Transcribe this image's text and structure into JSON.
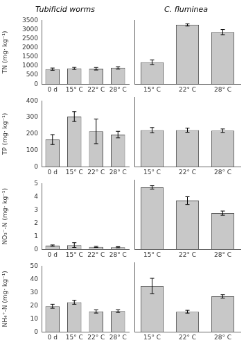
{
  "chart_data": [
    {
      "type": "bar",
      "title": "Tubificid worms",
      "y_label": "TN (mg· kg⁻¹)",
      "categories": [
        "0 d",
        "15° C",
        "22° C",
        "28° C"
      ],
      "values": [
        820,
        860,
        840,
        890
      ],
      "errors": [
        60,
        55,
        70,
        65
      ],
      "color": "#c8c8c8",
      "ylim": [
        0,
        3500
      ],
      "yticks": [
        0,
        500,
        1000,
        1500,
        2000,
        2500,
        3000,
        3500
      ],
      "grid": false
    },
    {
      "type": "bar",
      "title": "C. fluminea",
      "categories": [
        "15° C",
        "22° C",
        "28° C"
      ],
      "values": [
        1200,
        3250,
        2850
      ],
      "errors": [
        130,
        60,
        140
      ],
      "color": "#c8c8c8",
      "ylim": [
        0,
        3500
      ],
      "yticks": [
        0,
        500,
        1000,
        1500,
        2000,
        2500,
        3000,
        3500
      ],
      "grid": false,
      "tick_labels": "x"
    },
    {
      "type": "bar",
      "y_label": "TP (mg· kg⁻¹)",
      "categories": [
        "0 d",
        "15° C",
        "22° C",
        "28° C"
      ],
      "values": [
        165,
        305,
        215,
        195
      ],
      "errors": [
        30,
        30,
        75,
        20
      ],
      "color": "#c8c8c8",
      "ylim": [
        0,
        400
      ],
      "yticks": [
        0,
        100,
        200,
        300,
        400
      ],
      "grid": false
    },
    {
      "type": "bar",
      "categories": [
        "15° C",
        "22° C",
        "28° C"
      ],
      "values": [
        210,
        210,
        207
      ],
      "errors": [
        15,
        12,
        10
      ],
      "color": "#c8c8c8",
      "ylim": [
        0,
        400
      ],
      "yticks": [
        0,
        100,
        200,
        300,
        400
      ],
      "grid": false,
      "tick_labels": "x"
    },
    {
      "type": "bar",
      "y_label": "NO₃⁻-N (mg· kg⁻¹)",
      "categories": [
        "0 d",
        "15° C",
        "22° C",
        "28° C"
      ],
      "values": [
        0.28,
        0.32,
        0.18,
        0.16
      ],
      "errors": [
        0.05,
        0.18,
        0.04,
        0.04
      ],
      "color": "#c8c8c8",
      "ylim": [
        0,
        5
      ],
      "yticks": [
        0,
        1,
        2,
        3,
        4,
        5
      ],
      "grid": false
    },
    {
      "type": "bar",
      "categories": [
        "15° C",
        "22° C",
        "28° C"
      ],
      "values": [
        4.45,
        3.5,
        2.6
      ],
      "errors": [
        0.12,
        0.28,
        0.15
      ],
      "color": "#c8c8c8",
      "ylim": [
        0,
        5
      ],
      "yticks": [
        0,
        1,
        2,
        3,
        4,
        5
      ],
      "grid": false,
      "tick_labels": "x"
    },
    {
      "type": "bar",
      "y_label": "NH₄⁺-N (mg· kg⁻¹)",
      "categories": [
        "0 d",
        "15° C",
        "22° C",
        "28° C"
      ],
      "values": [
        19.5,
        22.5,
        15.5,
        15.8
      ],
      "errors": [
        1.5,
        1.5,
        1.2,
        1.0
      ],
      "color": "#c8c8c8",
      "ylim": [
        0,
        50
      ],
      "yticks": [
        0,
        10,
        20,
        30,
        40,
        50
      ],
      "grid": false
    },
    {
      "type": "bar",
      "categories": [
        "15° C",
        "22° C",
        "28° C"
      ],
      "values": [
        33.0,
        14.5,
        25.5
      ],
      "errors": [
        5.5,
        1.0,
        1.2
      ],
      "color": "#c8c8c8",
      "ylim": [
        0,
        50
      ],
      "yticks": [
        0,
        10,
        20,
        30,
        40,
        50
      ],
      "grid": false,
      "tick_labels": "x"
    }
  ]
}
